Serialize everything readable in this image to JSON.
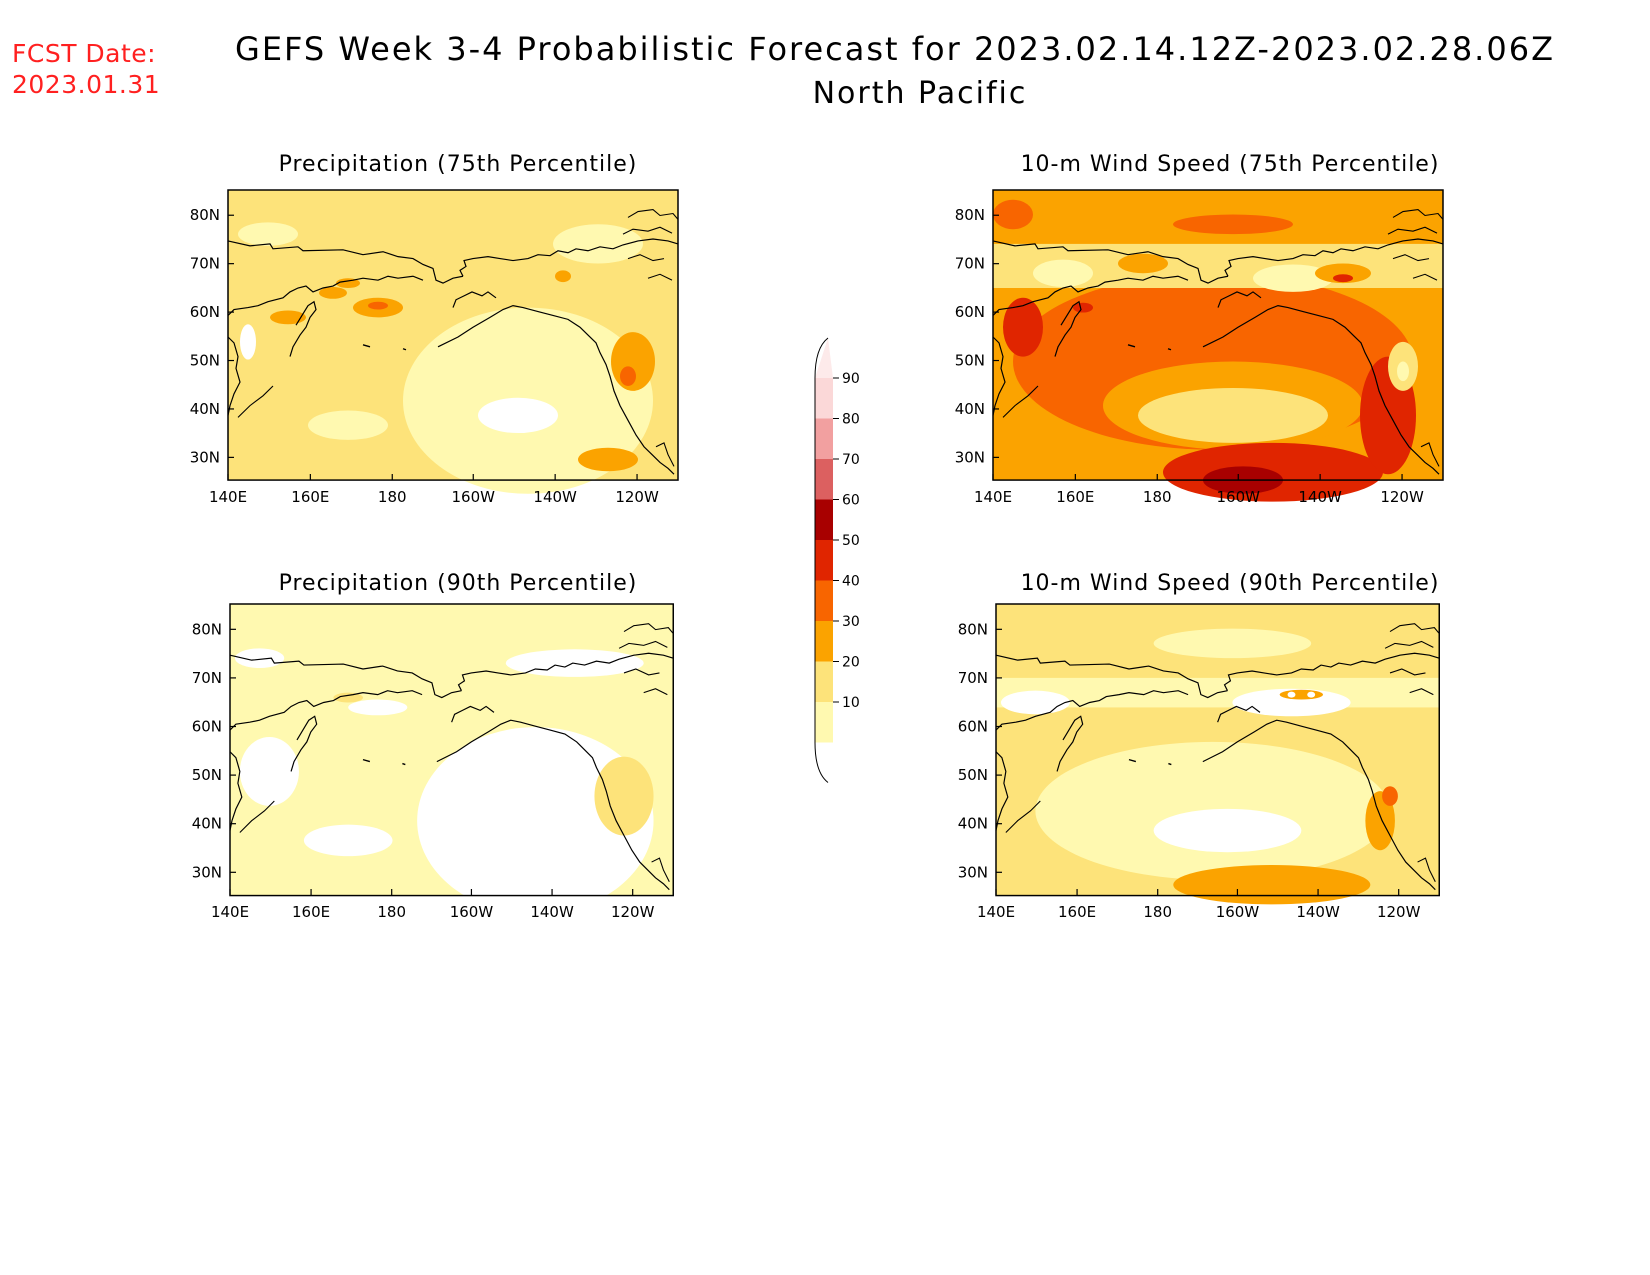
{
  "header": {
    "fcst_label": "FCST Date:",
    "fcst_date": "2023.01.31",
    "title": "GEFS Week 3-4 Probabilistic Forecast for 2023.02.14.12Z-2023.02.28.06Z",
    "region": "North Pacific"
  },
  "colors": {
    "c10": "#fff9b0",
    "c20": "#fde37a",
    "c30": "#fba300",
    "c40": "#f86500",
    "c50": "#e02500",
    "c60": "#a80000",
    "c70": "#dc6060",
    "c80": "#f2a0a0",
    "c90": "#fbd8d8",
    "coast": "#000000"
  },
  "maps": {
    "lon_ticks": [
      "140E",
      "160E",
      "180",
      "160W",
      "140W",
      "120W"
    ],
    "lat_ticks": [
      "80N",
      "70N",
      "60N",
      "50N",
      "40N",
      "30N"
    ]
  },
  "panels": [
    {
      "title": "Precipitation (75th Percentile)",
      "background_level": 20
    },
    {
      "title": "10-m Wind Speed (75th Percentile)",
      "background_level": 30
    },
    {
      "title": "Precipitation (90th Percentile)",
      "background_level": 10
    },
    {
      "title": "10-m Wind Speed (90th Percentile)",
      "background_level": 20
    }
  ],
  "colorbar": {
    "levels": [
      "90",
      "80",
      "70",
      "60",
      "50",
      "40",
      "30",
      "20",
      "10"
    ]
  }
}
